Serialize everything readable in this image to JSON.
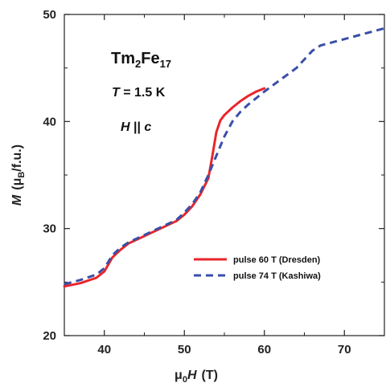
{
  "chart_data": {
    "type": "line",
    "xlim": [
      35,
      75
    ],
    "ylim": [
      20,
      50
    ],
    "xticks": [
      40,
      50,
      60,
      70
    ],
    "yticks": [
      20,
      30,
      40,
      50
    ],
    "xlabel": {
      "pre": "μ",
      "sub": "0",
      "main": "H",
      "unit": "(T)"
    },
    "ylabel": {
      "main": "M",
      "unit_pre": "(μ",
      "unit_sub": "B",
      "unit_post": "/f.u.)"
    },
    "annotations": {
      "compound": {
        "a": "Tm",
        "s1": "2",
        "b": "Fe",
        "s2": "17"
      },
      "temperature": {
        "var": "T",
        "rest": " = 1.5 K"
      },
      "field": {
        "var": "H",
        "mid": " || ",
        "axis": "c"
      }
    },
    "legend_position": "center-right",
    "series": [
      {
        "name": "pulse 60 T (Dresden)",
        "color": "#e8262b",
        "dash": "solid",
        "x": [
          35,
          37,
          39,
          40,
          41,
          42,
          43,
          45,
          47,
          49,
          50,
          51,
          52,
          53,
          53.5,
          54,
          54.5,
          55,
          56,
          57,
          58,
          59,
          60
        ],
        "y": [
          24.6,
          24.9,
          25.4,
          26.0,
          27.3,
          28.0,
          28.6,
          29.3,
          30.0,
          30.7,
          31.3,
          32.1,
          33.2,
          34.7,
          36.8,
          39.0,
          40.1,
          40.6,
          41.3,
          41.9,
          42.4,
          42.8,
          43.1
        ]
      },
      {
        "name": "pulse 74 T (Kashiwa)",
        "color": "#3a4fa8",
        "dash": "dashed",
        "x": [
          35,
          37,
          39,
          40,
          41,
          42,
          43,
          45,
          47,
          49,
          50,
          51,
          52,
          53,
          54,
          55,
          56,
          57,
          58,
          60,
          62,
          64,
          65,
          66,
          67,
          70,
          72,
          75
        ],
        "y": [
          24.8,
          25.2,
          25.7,
          26.3,
          27.5,
          28.2,
          28.7,
          29.4,
          30.1,
          30.8,
          31.5,
          32.3,
          33.4,
          35.0,
          36.8,
          38.6,
          40.0,
          40.9,
          41.6,
          42.8,
          43.9,
          45.0,
          45.8,
          46.6,
          47.1,
          47.7,
          48.1,
          48.7
        ]
      }
    ]
  }
}
